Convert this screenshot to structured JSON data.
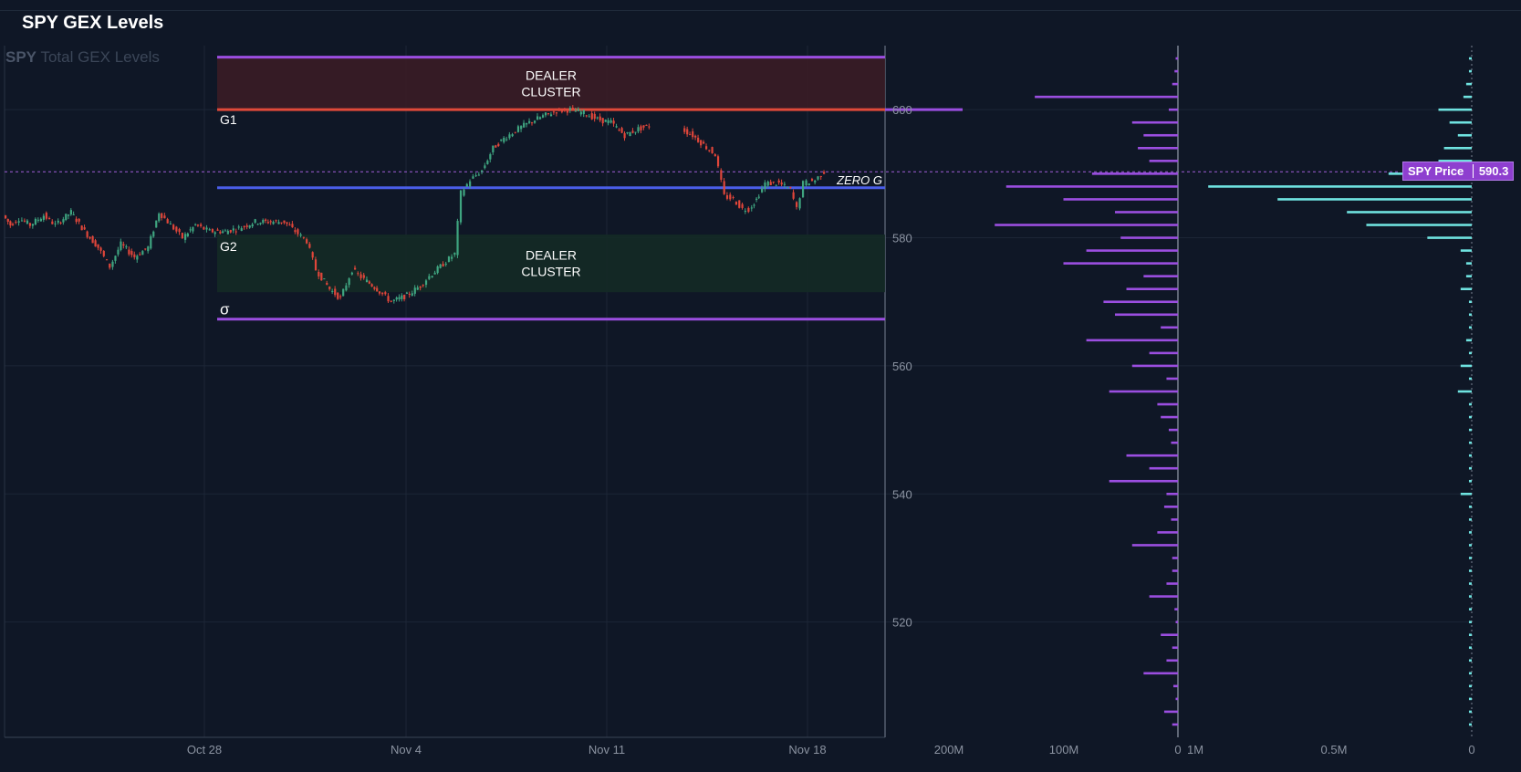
{
  "header": {
    "title": "SPY GEX Levels"
  },
  "subtitle": {
    "ticker": "SPY",
    "text": "Total GEX Levels"
  },
  "price_badge": {
    "label": "SPY Price",
    "value": "590.3"
  },
  "chart_data": [
    {
      "type": "candlestick",
      "title": "SPY Total GEX Levels",
      "x_ticks": [
        "Oct 28",
        "Nov 4",
        "Nov 11",
        "Nov 18"
      ],
      "y_ticks": [
        520,
        540,
        560,
        580,
        600
      ],
      "ylim": [
        502,
        610
      ],
      "grid": true,
      "current_price": 590.3,
      "levels": [
        {
          "label": "",
          "value": 608.2,
          "color": "#9b4ee0"
        },
        {
          "label": "G1",
          "value": 600.0,
          "color": "#e04a3a"
        },
        {
          "label": "ZERO G",
          "value": 587.8,
          "color": "#4a5ee8"
        },
        {
          "label": "G2",
          "value": 580.2,
          "color": ""
        },
        {
          "label": "σ",
          "value": 567.3,
          "color": "#9b4ee0"
        }
      ],
      "zones": [
        {
          "label": "DEALER CLUSTER",
          "from": 600.0,
          "to": 608.2,
          "color": "#3a1c26"
        },
        {
          "label": "DEALER CLUSTER",
          "from": 571.5,
          "to": 580.5,
          "color": "#142a26"
        }
      ],
      "price_path": [
        [
          0,
          583.5
        ],
        [
          8,
          582
        ],
        [
          18,
          583
        ],
        [
          30,
          582
        ],
        [
          45,
          583.5
        ],
        [
          58,
          582
        ],
        [
          75,
          584
        ],
        [
          90,
          581
        ],
        [
          105,
          578.5
        ],
        [
          118,
          575.5
        ],
        [
          130,
          579
        ],
        [
          145,
          577
        ],
        [
          160,
          578.5
        ],
        [
          172,
          584
        ],
        [
          185,
          582
        ],
        [
          198,
          580
        ],
        [
          212,
          582
        ],
        [
          228,
          581
        ],
        [
          245,
          581
        ],
        [
          260,
          581.5
        ],
        [
          278,
          582.5
        ],
        [
          295,
          582.5
        ],
        [
          310,
          582.5
        ],
        [
          322,
          581
        ],
        [
          335,
          579.5
        ],
        [
          345,
          575
        ],
        [
          360,
          572
        ],
        [
          372,
          570.5
        ],
        [
          385,
          575
        ],
        [
          398,
          573.5
        ],
        [
          412,
          572
        ],
        [
          428,
          570
        ],
        [
          445,
          571
        ],
        [
          460,
          572.5
        ],
        [
          470,
          574
        ],
        [
          482,
          575.5
        ],
        [
          498,
          577.5
        ],
        [
          505,
          587
        ],
        [
          515,
          589
        ],
        [
          528,
          590.5
        ],
        [
          540,
          594
        ],
        [
          552,
          595.5
        ],
        [
          568,
          597
        ],
        [
          580,
          598
        ],
        [
          595,
          599
        ],
        [
          610,
          599.8
        ],
        [
          625,
          600
        ],
        [
          640,
          599.5
        ],
        [
          655,
          598.5
        ],
        [
          670,
          598
        ],
        [
          685,
          596
        ],
        [
          700,
          597
        ],
        [
          712,
          597.5
        ],
        [
          748,
          597
        ],
        [
          760,
          596
        ],
        [
          772,
          594.5
        ],
        [
          785,
          593
        ],
        [
          795,
          586.5
        ],
        [
          805,
          586
        ],
        [
          815,
          584.5
        ],
        [
          822,
          584.5
        ],
        [
          830,
          586
        ],
        [
          840,
          588.5
        ],
        [
          855,
          588.5
        ],
        [
          868,
          587.5
        ],
        [
          875,
          584.5
        ],
        [
          882,
          588.5
        ],
        [
          895,
          589
        ],
        [
          905,
          590.3
        ]
      ],
      "gaps_after": [
        708,
        789
      ]
    },
    {
      "type": "bar",
      "orientation": "horizontal",
      "title": "",
      "x_ticks": [
        "200M",
        "100M",
        "0"
      ],
      "color": "#9b4ee0",
      "categories": [
        608,
        606,
        604,
        602,
        600,
        598,
        596,
        594,
        592,
        590,
        588,
        586,
        584,
        582,
        580,
        578,
        576,
        574,
        572,
        570,
        568,
        566,
        564,
        562,
        560,
        558,
        556,
        554,
        552,
        550,
        548,
        546,
        544,
        542,
        540,
        538,
        536,
        534,
        532,
        530,
        528,
        526,
        524,
        522,
        520,
        518,
        516,
        514,
        512,
        510,
        508,
        506,
        504
      ],
      "values": [
        2,
        3,
        5,
        125,
        8,
        40,
        30,
        35,
        25,
        75,
        150,
        100,
        55,
        160,
        50,
        80,
        100,
        30,
        45,
        65,
        55,
        15,
        80,
        25,
        40,
        10,
        60,
        18,
        15,
        8,
        6,
        45,
        25,
        60,
        10,
        12,
        6,
        18,
        40,
        5,
        5,
        10,
        25,
        3,
        2,
        15,
        5,
        10,
        30,
        4,
        2,
        12,
        5
      ]
    },
    {
      "type": "bar",
      "orientation": "horizontal",
      "title": "",
      "x_ticks": [
        "1M",
        "0.5M",
        "0"
      ],
      "color": "#6fe3e0",
      "categories": [
        608,
        606,
        604,
        602,
        600,
        598,
        596,
        594,
        592,
        590,
        588,
        586,
        584,
        582,
        580,
        578,
        576,
        574,
        572,
        570,
        568,
        566,
        564,
        562,
        560,
        558,
        556,
        554,
        552,
        550,
        548,
        546,
        544,
        542,
        540,
        538,
        536,
        534,
        532,
        530,
        528,
        526,
        524,
        522,
        520,
        518,
        516,
        514,
        512,
        510,
        508,
        506,
        504
      ],
      "values": [
        0.01,
        0.01,
        0.02,
        0.03,
        0.12,
        0.08,
        0.05,
        0.1,
        0.12,
        0.3,
        0.95,
        0.7,
        0.45,
        0.38,
        0.16,
        0.04,
        0.02,
        0.02,
        0.04,
        0.01,
        0.01,
        0.01,
        0.02,
        0.01,
        0.04,
        0.01,
        0.05,
        0.01,
        0.01,
        0.01,
        0.01,
        0.01,
        0.01,
        0.01,
        0.04,
        0.01,
        0.01,
        0.01,
        0.01,
        0.01,
        0.01,
        0.01,
        0.01,
        0.01,
        0.01,
        0.01,
        0.01,
        0.01,
        0.01,
        0.01,
        0.01,
        0.01,
        0.01
      ]
    }
  ],
  "colors": {
    "background": "#0f1726",
    "up": "#3fa580",
    "down": "#e0463a",
    "grid": "#1c2636",
    "purple": "#9b4ee0",
    "cyan": "#6fe3e0"
  }
}
